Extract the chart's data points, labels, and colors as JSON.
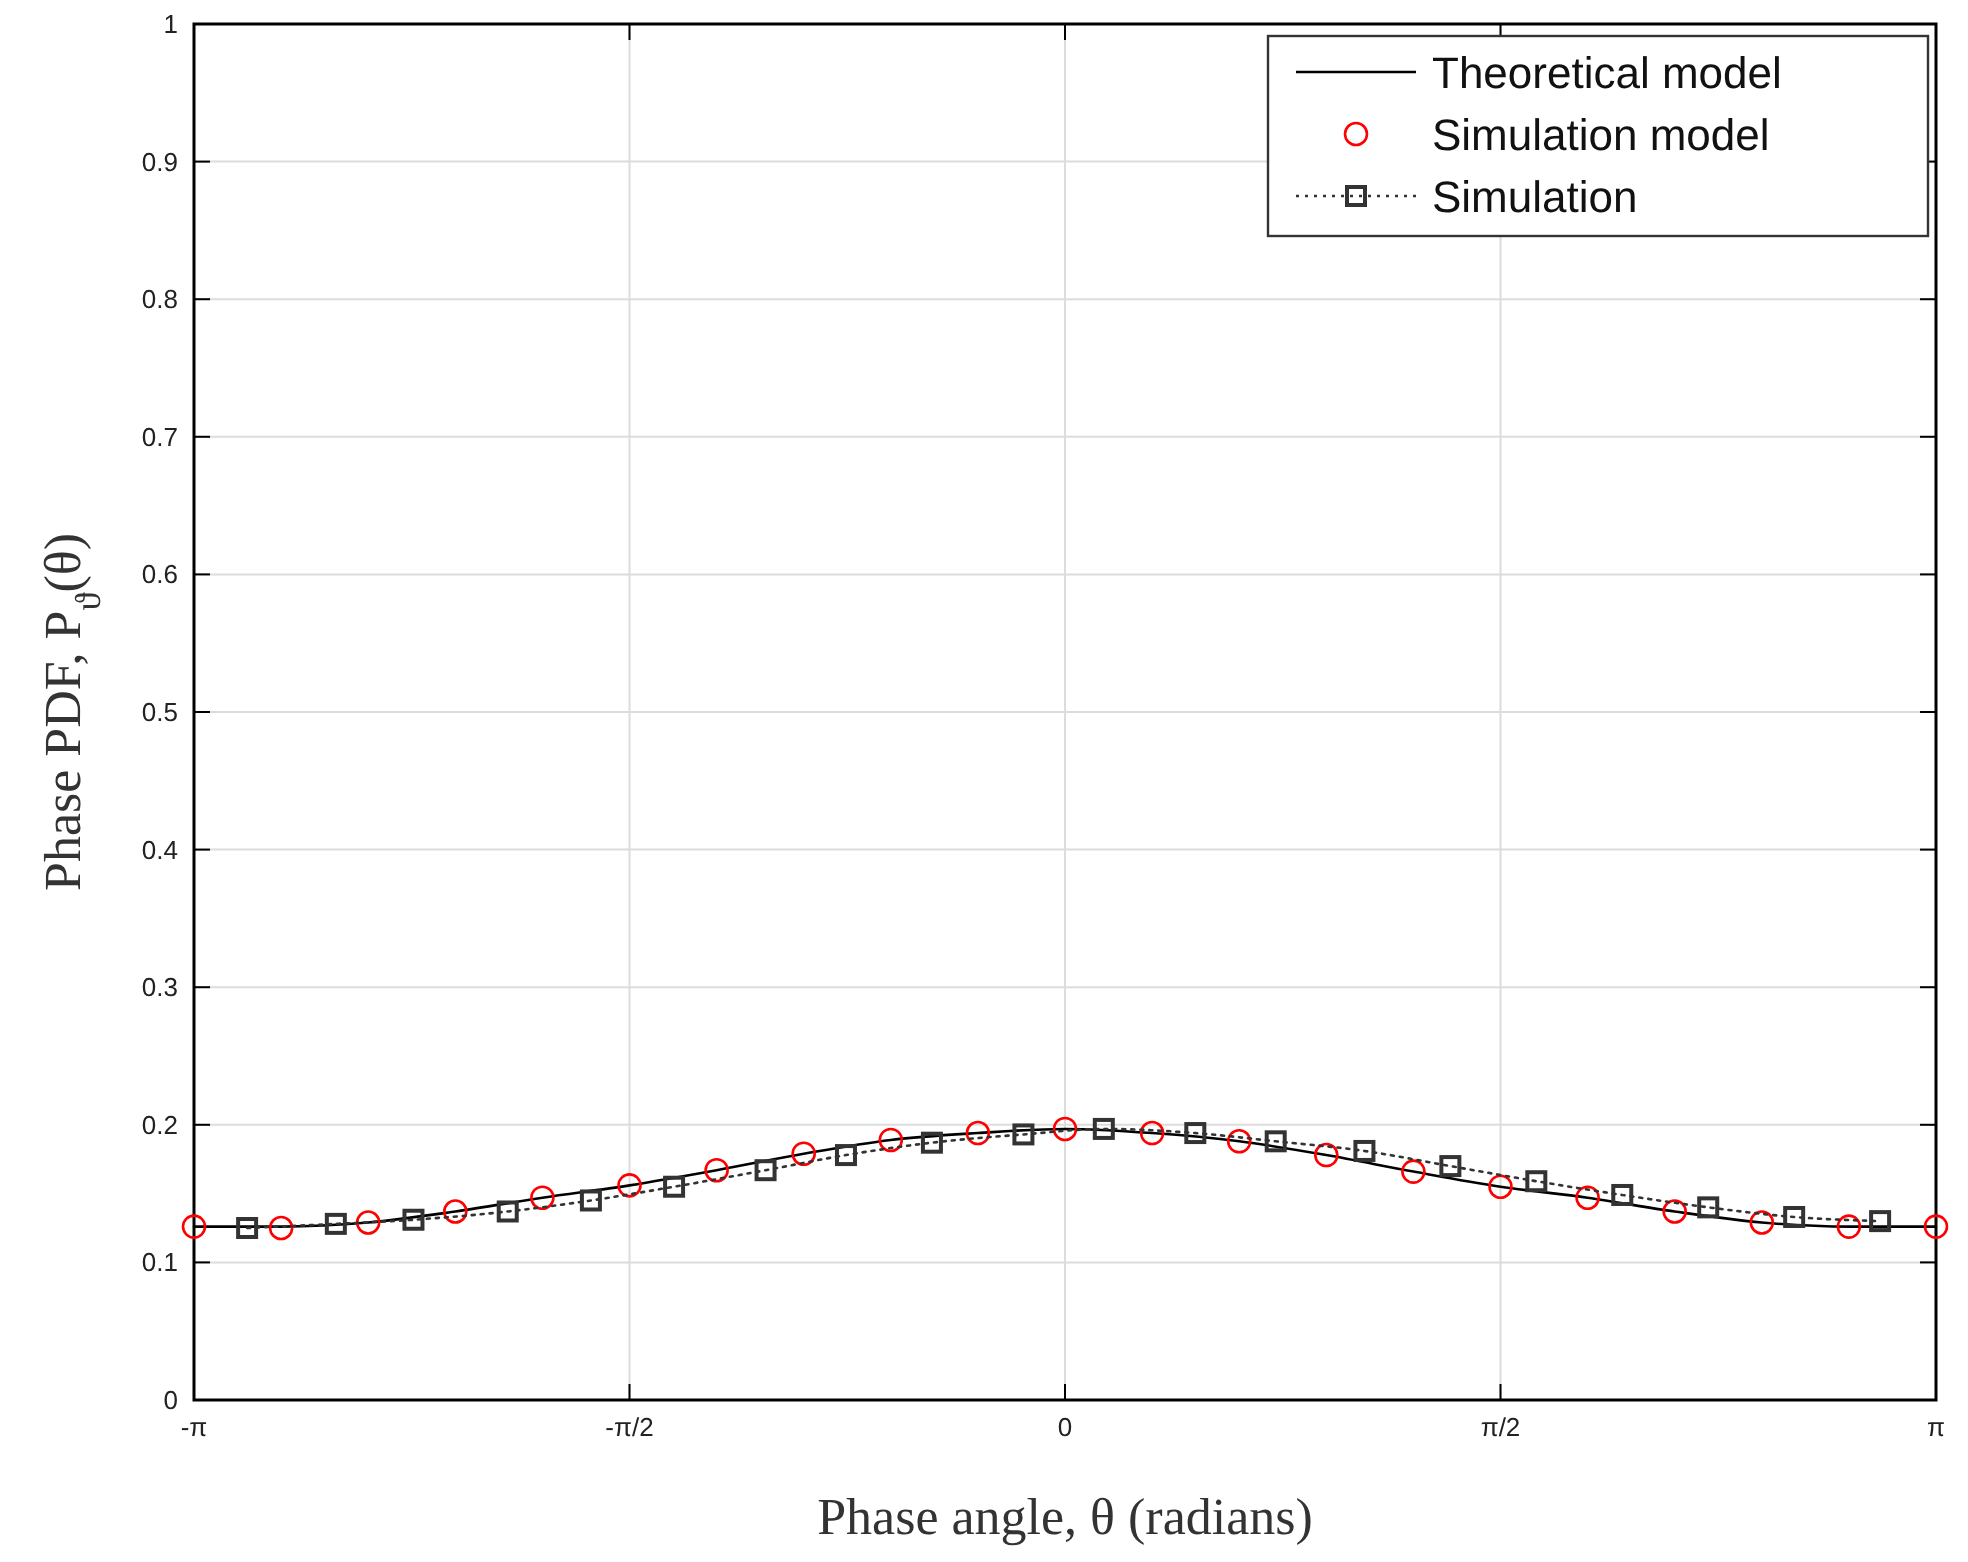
{
  "chart_data": {
    "type": "line",
    "xlabel": "Phase angle, θ (radians)",
    "ylabel": "Phase PDF, P$_{ϑ}$(θ)",
    "xlim": [
      -3.1416,
      3.1416
    ],
    "ylim": [
      0,
      1
    ],
    "xticks": [
      {
        "value": -3.1416,
        "label": "-π"
      },
      {
        "value": -1.5708,
        "label": "-π/2"
      },
      {
        "value": 0,
        "label": "0"
      },
      {
        "value": 1.5708,
        "label": "π/2"
      },
      {
        "value": 3.1416,
        "label": "π"
      }
    ],
    "yticks": [
      0,
      0.1,
      0.2,
      0.3,
      0.4,
      0.5,
      0.6,
      0.7,
      0.8,
      0.9,
      1
    ],
    "grid": true,
    "legend": "top right",
    "series": [
      {
        "name": "Theoretical model",
        "type": "line",
        "color": "#000000",
        "marker": "none",
        "line_style": "solid",
        "x": [
          -3.1416,
          -2.8274,
          -2.5133,
          -2.1991,
          -1.885,
          -1.5708,
          -1.2566,
          -0.9425,
          -0.6283,
          -0.3142,
          0,
          0.3142,
          0.6283,
          0.9425,
          1.2566,
          1.5708,
          1.885,
          2.1991,
          2.5133,
          2.8274,
          3.1416
        ],
        "values": [
          0.126,
          0.126,
          0.129,
          0.137,
          0.147,
          0.156,
          0.167,
          0.179,
          0.189,
          0.194,
          0.197,
          0.194,
          0.188,
          0.178,
          0.166,
          0.155,
          0.147,
          0.137,
          0.129,
          0.126,
          0.126
        ]
      },
      {
        "name": "Simulation model",
        "type": "scatter",
        "color": "#ff0000",
        "marker": "circle",
        "x": [
          -3.1416,
          -2.8274,
          -2.5133,
          -2.1991,
          -1.885,
          -1.5708,
          -1.2566,
          -0.9425,
          -0.6283,
          -0.3142,
          0,
          0.3142,
          0.6283,
          0.9425,
          1.2566,
          1.5708,
          1.885,
          2.1991,
          2.5133,
          2.8274,
          3.1416
        ],
        "values": [
          0.126,
          0.125,
          0.129,
          0.137,
          0.147,
          0.156,
          0.167,
          0.179,
          0.189,
          0.194,
          0.197,
          0.194,
          0.188,
          0.178,
          0.166,
          0.155,
          0.147,
          0.137,
          0.129,
          0.126,
          0.126
        ]
      },
      {
        "name": "Simulation",
        "type": "line",
        "color": "#333333",
        "marker": "square",
        "line_style": "dotted",
        "x": [
          -2.95,
          -2.63,
          -2.35,
          -2.01,
          -1.71,
          -1.41,
          -1.08,
          -0.79,
          -0.48,
          -0.15,
          0.14,
          0.47,
          0.76,
          1.08,
          1.39,
          1.7,
          2.01,
          2.32,
          2.63,
          2.94
        ],
        "values": [
          0.125,
          0.128,
          0.131,
          0.137,
          0.145,
          0.155,
          0.167,
          0.178,
          0.187,
          0.193,
          0.197,
          0.194,
          0.188,
          0.181,
          0.17,
          0.159,
          0.149,
          0.14,
          0.133,
          0.13
        ]
      }
    ]
  }
}
